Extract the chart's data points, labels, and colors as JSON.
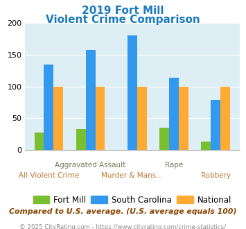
{
  "title_line1": "2019 Fort Mill",
  "title_line2": "Violent Crime Comparison",
  "title_color": "#1a7abf",
  "categories": [
    "All Violent Crime",
    "Aggravated Assault",
    "Murder & Mans...",
    "Rape",
    "Robbery"
  ],
  "top_row_labels": [
    "",
    "Aggravated Assault",
    "",
    "Rape",
    ""
  ],
  "bot_row_labels": [
    "All Violent Crime",
    "",
    "Murder & Mans...",
    "",
    "Robbery"
  ],
  "top_label_color": "#888866",
  "bot_label_color": "#cc8844",
  "fort_mill": [
    28,
    33,
    0,
    35,
    13
  ],
  "south_carolina": [
    135,
    157,
    180,
    114,
    79
  ],
  "national": [
    100,
    100,
    100,
    100,
    100
  ],
  "fort_mill_color": "#7abf30",
  "sc_color": "#3399ee",
  "national_color": "#ffaa33",
  "ylim": [
    0,
    200
  ],
  "yticks": [
    0,
    50,
    100,
    150,
    200
  ],
  "plot_bg": "#ddeef5",
  "footer_text": "Compared to U.S. average. (U.S. average equals 100)",
  "footer_color": "#884400",
  "copyright_text": "© 2025 CityRating.com - https://www.cityrating.com/crime-statistics/",
  "copyright_color": "#888888",
  "legend_labels": [
    "Fort Mill",
    "South Carolina",
    "National"
  ]
}
